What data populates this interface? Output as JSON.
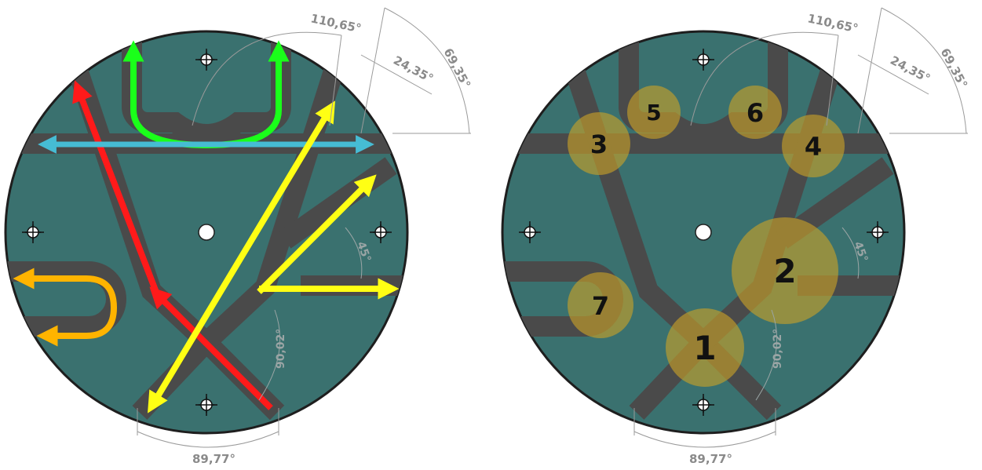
{
  "colors": {
    "plate": "#3a716f",
    "groove": "#4a4a4a",
    "outline": "#1e1e1e",
    "dimension": "#9a9a9a",
    "marker": "#c9a227",
    "arrow_red": "#ff1a1a",
    "arrow_green": "#1aff1a",
    "arrow_cyan": "#46bcd4",
    "arrow_yellow": "#ffff14",
    "arrow_orange": "#ffb400"
  },
  "dimensions": {
    "angle_top": "110,65°",
    "angle_mid": "24,35°",
    "angle_right": "69,35°",
    "angle_inner": "45°",
    "angle_lower": "90,02°",
    "angle_bottom": "89,77°"
  },
  "left_diagram": {
    "arrows": [
      "red",
      "green",
      "cyan",
      "yellow",
      "orange"
    ]
  },
  "right_diagram": {
    "markers": [
      "1",
      "2",
      "3",
      "4",
      "5",
      "6",
      "7"
    ]
  }
}
